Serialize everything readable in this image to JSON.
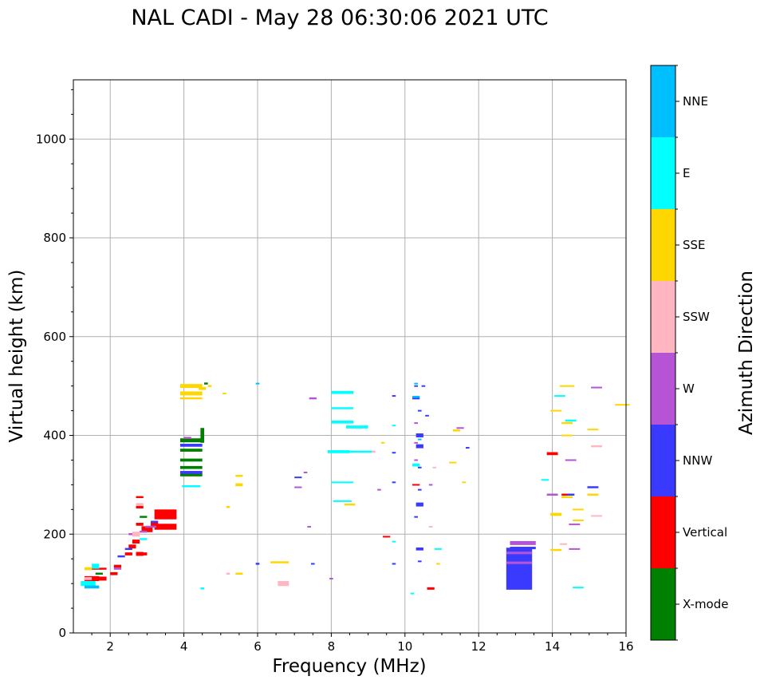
{
  "chart_data": {
    "type": "scatter",
    "title": "NAL CADI - May 28 06:30:06 2021 UTC",
    "xlabel": "Frequency (MHz)",
    "ylabel": "Virtual height (km)",
    "xlim": [
      1,
      16
    ],
    "ylim": [
      0,
      1120
    ],
    "xticks": [
      2,
      4,
      6,
      8,
      10,
      12,
      14,
      16
    ],
    "yticks": [
      0,
      200,
      400,
      600,
      800,
      1000
    ],
    "grid": true,
    "colorbar": {
      "label": "Azimuth Direction",
      "categories": [
        "X-mode",
        "Vertical",
        "NNW",
        "W",
        "SSW",
        "SSE",
        "E",
        "NNE"
      ],
      "colors": {
        "X-mode": "#008000",
        "Vertical": "#ff0000",
        "NNW": "#3a3aff",
        "W": "#b555d5",
        "SSW": "#ffb6c1",
        "SSE": "#ffd700",
        "E": "#00ffff",
        "NNE": "#00bfff"
      }
    },
    "series": [
      {
        "name": "Vertical",
        "points": [
          [
            1.5,
            110,
            0.4,
            10
          ],
          [
            1.6,
            130,
            0.2,
            4
          ],
          [
            1.7,
            110,
            0.4,
            8
          ],
          [
            1.8,
            130,
            0.2,
            4
          ],
          [
            2.1,
            120,
            0.2,
            6
          ],
          [
            2.2,
            135,
            0.2,
            6
          ],
          [
            2.5,
            160,
            0.2,
            6
          ],
          [
            2.6,
            175,
            0.2,
            8
          ],
          [
            2.7,
            185,
            0.2,
            8
          ],
          [
            2.8,
            160,
            0.2,
            8
          ],
          [
            2.9,
            160,
            0.2,
            6
          ],
          [
            2.8,
            220,
            0.2,
            6
          ],
          [
            2.8,
            255,
            0.2,
            6
          ],
          [
            2.8,
            275,
            0.2,
            4
          ],
          [
            3.0,
            210,
            0.3,
            12
          ],
          [
            3.2,
            220,
            0.2,
            8
          ],
          [
            3.5,
            240,
            0.6,
            20
          ],
          [
            3.5,
            215,
            0.6,
            12
          ],
          [
            9.5,
            195,
            0.2,
            3
          ],
          [
            10.3,
            300,
            0.2,
            3
          ],
          [
            10.7,
            90,
            0.2,
            5
          ],
          [
            14.0,
            363,
            0.3,
            6
          ],
          [
            14.4,
            280,
            0.3,
            4
          ]
        ]
      },
      {
        "name": "X-mode",
        "points": [
          [
            1.7,
            120,
            0.2,
            4
          ],
          [
            2.9,
            235,
            0.2,
            4
          ],
          [
            4.2,
            390,
            0.6,
            8
          ],
          [
            4.2,
            370,
            0.6,
            6
          ],
          [
            4.2,
            350,
            0.6,
            6
          ],
          [
            4.2,
            335,
            0.6,
            6
          ],
          [
            4.2,
            320,
            0.6,
            6
          ],
          [
            4.5,
            400,
            0.1,
            30
          ],
          [
            4.6,
            505,
            0.1,
            4
          ]
        ]
      },
      {
        "name": "NNW",
        "points": [
          [
            2.3,
            155,
            0.2,
            4
          ],
          [
            2.5,
            170,
            0.2,
            4
          ],
          [
            3.2,
            225,
            0.2,
            4
          ],
          [
            4.2,
            380,
            0.6,
            6
          ],
          [
            4.2,
            325,
            0.6,
            6
          ],
          [
            6.0,
            140,
            0.1,
            4
          ],
          [
            7.1,
            315,
            0.2,
            3
          ],
          [
            7.5,
            140,
            0.1,
            3
          ],
          [
            9.7,
            480,
            0.1,
            3
          ],
          [
            9.7,
            365,
            0.1,
            3
          ],
          [
            9.7,
            305,
            0.1,
            3
          ],
          [
            9.7,
            140,
            0.1,
            3
          ],
          [
            10.3,
            500,
            0.1,
            3
          ],
          [
            10.3,
            475,
            0.2,
            4
          ],
          [
            10.4,
            400,
            0.2,
            8
          ],
          [
            10.4,
            378,
            0.2,
            8
          ],
          [
            10.4,
            335,
            0.1,
            3
          ],
          [
            10.4,
            290,
            0.1,
            3
          ],
          [
            10.4,
            260,
            0.2,
            8
          ],
          [
            10.3,
            235,
            0.1,
            3
          ],
          [
            10.4,
            170,
            0.2,
            6
          ],
          [
            10.4,
            145,
            0.1,
            3
          ],
          [
            10.5,
            500,
            0.1,
            3
          ],
          [
            10.4,
            450,
            0.1,
            3
          ],
          [
            10.6,
            440,
            0.1,
            3
          ],
          [
            11.7,
            375,
            0.1,
            3
          ],
          [
            13.1,
            130,
            0.7,
            85
          ],
          [
            13.2,
            172,
            0.7,
            5
          ],
          [
            14.0,
            280,
            0.2,
            4
          ],
          [
            14.5,
            280,
            0.2,
            4
          ],
          [
            15.1,
            295,
            0.3,
            4
          ]
        ]
      },
      {
        "name": "W",
        "points": [
          [
            2.2,
            130,
            0.2,
            4
          ],
          [
            2.6,
            200,
            0.2,
            4
          ],
          [
            2.9,
            205,
            0.2,
            4
          ],
          [
            3.1,
            215,
            0.3,
            4
          ],
          [
            4.1,
            395,
            0.2,
            4
          ],
          [
            7.5,
            475,
            0.2,
            4
          ],
          [
            7.1,
            295,
            0.2,
            3
          ],
          [
            7.3,
            325,
            0.1,
            3
          ],
          [
            7.4,
            215,
            0.1,
            3
          ],
          [
            8.0,
            110,
            0.1,
            3
          ],
          [
            9.3,
            290,
            0.1,
            3
          ],
          [
            10.3,
            425,
            0.1,
            3
          ],
          [
            10.3,
            385,
            0.1,
            3
          ],
          [
            10.3,
            350,
            0.1,
            3
          ],
          [
            10.7,
            300,
            0.1,
            3
          ],
          [
            11.5,
            415,
            0.2,
            3
          ],
          [
            13.1,
            162,
            0.7,
            5
          ],
          [
            13.1,
            142,
            0.7,
            5
          ],
          [
            13.2,
            182,
            0.7,
            8
          ],
          [
            14.0,
            280,
            0.3,
            4
          ],
          [
            14.5,
            350,
            0.3,
            3
          ],
          [
            14.6,
            220,
            0.3,
            3
          ],
          [
            14.6,
            170,
            0.3,
            3
          ],
          [
            15.2,
            497,
            0.3,
            3
          ]
        ]
      },
      {
        "name": "SSW",
        "points": [
          [
            1.4,
            110,
            0.2,
            6
          ],
          [
            2.7,
            200,
            0.2,
            10
          ],
          [
            2.8,
            260,
            0.2,
            6
          ],
          [
            5.2,
            120,
            0.1,
            4
          ],
          [
            6.7,
            100,
            0.3,
            10
          ],
          [
            9.0,
            367,
            0.4,
            4
          ],
          [
            10.7,
            215,
            0.1,
            3
          ],
          [
            10.8,
            335,
            0.1,
            3
          ],
          [
            14.3,
            180,
            0.2,
            3
          ],
          [
            15.2,
            378,
            0.3,
            4
          ],
          [
            15.2,
            237,
            0.3,
            3
          ]
        ]
      },
      {
        "name": "SSE",
        "points": [
          [
            1.4,
            130,
            0.2,
            6
          ],
          [
            4.2,
            500,
            0.6,
            8
          ],
          [
            4.2,
            485,
            0.6,
            8
          ],
          [
            4.2,
            475,
            0.6,
            4
          ],
          [
            4.5,
            495,
            0.2,
            6
          ],
          [
            4.7,
            500,
            0.1,
            4
          ],
          [
            5.1,
            485,
            0.1,
            3
          ],
          [
            5.5,
            318,
            0.2,
            4
          ],
          [
            5.5,
            300,
            0.2,
            6
          ],
          [
            5.2,
            255,
            0.1,
            4
          ],
          [
            5.5,
            120,
            0.2,
            4
          ],
          [
            6.6,
            143,
            0.5,
            4
          ],
          [
            8.5,
            260,
            0.3,
            4
          ],
          [
            9.4,
            385,
            0.1,
            3
          ],
          [
            11.4,
            410,
            0.2,
            4
          ],
          [
            11.3,
            345,
            0.2,
            3
          ],
          [
            11.6,
            305,
            0.1,
            3
          ],
          [
            10.9,
            140,
            0.1,
            3
          ],
          [
            14.1,
            450,
            0.3,
            3
          ],
          [
            14.1,
            240,
            0.3,
            6
          ],
          [
            14.1,
            168,
            0.3,
            4
          ],
          [
            14.4,
            500,
            0.4,
            3
          ],
          [
            14.4,
            425,
            0.3,
            4
          ],
          [
            14.4,
            400,
            0.3,
            3
          ],
          [
            14.4,
            275,
            0.3,
            4
          ],
          [
            14.7,
            250,
            0.3,
            3
          ],
          [
            14.7,
            228,
            0.3,
            3
          ],
          [
            15.1,
            412,
            0.3,
            3
          ],
          [
            15.1,
            280,
            0.3,
            4
          ],
          [
            15.9,
            462,
            0.4,
            3
          ]
        ]
      },
      {
        "name": "E",
        "points": [
          [
            1.4,
            100,
            0.4,
            10
          ],
          [
            1.6,
            135,
            0.2,
            10
          ],
          [
            2.9,
            190,
            0.2,
            4
          ],
          [
            4.2,
            297,
            0.5,
            4
          ],
          [
            4.5,
            90,
            0.1,
            4
          ],
          [
            8.3,
            487,
            0.6,
            6
          ],
          [
            8.3,
            455,
            0.6,
            4
          ],
          [
            8.3,
            427,
            0.6,
            6
          ],
          [
            8.2,
            367,
            0.6,
            6
          ],
          [
            8.8,
            367,
            0.6,
            4
          ],
          [
            8.7,
            417,
            0.6,
            6
          ],
          [
            8.3,
            305,
            0.6,
            3
          ],
          [
            8.3,
            267,
            0.5,
            3
          ],
          [
            9.7,
            420,
            0.1,
            3
          ],
          [
            9.7,
            185,
            0.1,
            3
          ],
          [
            10.2,
            80,
            0.1,
            3
          ],
          [
            10.3,
            340,
            0.2,
            6
          ],
          [
            10.9,
            170,
            0.2,
            3
          ],
          [
            13.8,
            310,
            0.2,
            3
          ],
          [
            14.2,
            480,
            0.3,
            3
          ],
          [
            14.5,
            430,
            0.3,
            4
          ],
          [
            14.7,
            92,
            0.3,
            3
          ]
        ]
      },
      {
        "name": "NNE",
        "points": [
          [
            1.5,
            93,
            0.4,
            6
          ],
          [
            6.0,
            505,
            0.1,
            3
          ],
          [
            10.3,
            505,
            0.1,
            3
          ],
          [
            10.3,
            478,
            0.2,
            4
          ],
          [
            10.4,
            392,
            0.1,
            3
          ]
        ]
      }
    ]
  }
}
